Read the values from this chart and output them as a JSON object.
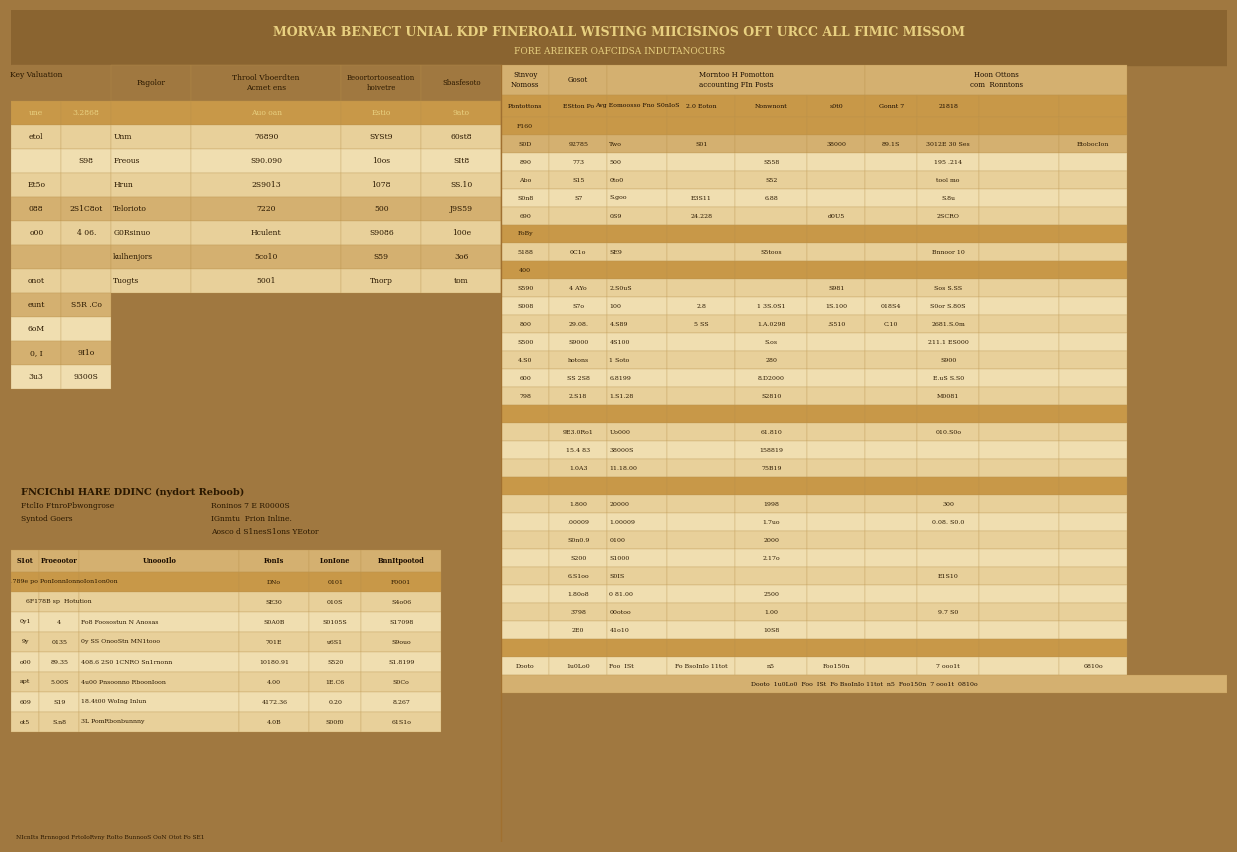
{
  "title": "MORVAR BENECT UNIAL KDP FINEROALL WISTING MIICISINOS OFT URCC ALL FIMIC MISSOM",
  "subtitle": "FORE AREIKER OAFCIDSA INDUTANOCURS",
  "bg": "#a07840",
  "bg_dark": "#8a6430",
  "bg_panel": "#c8a060",
  "cell_light": "#f0deb0",
  "cell_cream": "#e8d09a",
  "cell_tan": "#d4b070",
  "cell_gold": "#c89848",
  "cell_highlight": "#d4a050",
  "title_text": "#e8d080",
  "body_text": "#2a1800",
  "hdr_text": "#1a0c00",
  "left_headers": [
    "Key Valuation",
    "Pagolor",
    "Throol Vboerdten\nAcmet ens",
    "Beoortortooseation\nhoivetre  Sbasfesoto"
  ],
  "left_rows": [
    [
      "une",
      "3.2868",
      "",
      "Auo oan",
      "Estio",
      "9ato"
    ],
    [
      "etol",
      "",
      "Unm",
      "76890",
      "SYSt9",
      "60st8"
    ],
    [
      "",
      "S98",
      "Freous",
      "S90.090",
      "10os",
      "SIt8"
    ],
    [
      "Et5o",
      "",
      "Hrun",
      "2S9013",
      "1078",
      "SS.10"
    ],
    [
      "088",
      "2S1C8ot",
      "Telorioto",
      "7220",
      "500",
      "J9S59"
    ],
    [
      "o00",
      "4 06.",
      "G0Rsinuo",
      "Hculent",
      "S9086",
      "100e"
    ],
    [
      "",
      "",
      "kulhenjors",
      "5co10",
      "S59",
      "3o6"
    ],
    [
      "onot",
      "",
      "Tuogts",
      "5001",
      "Tnorp",
      "tom"
    ]
  ],
  "left_side_labels": [
    [
      "eunt",
      "S5R .Co"
    ],
    [
      "6oM",
      ""
    ],
    [
      "0, I",
      "9I1o"
    ],
    [
      "3u3",
      "9300S"
    ]
  ],
  "bl_title": "FNCIChbl HARE DDINC (nydort Reboob)",
  "bl_sub": [
    [
      "FtclIo FtnroPbwongrose",
      "Roninos 7 E R0000S"
    ],
    [
      "Syntod Goers",
      "IGnmtu  Prion Inline."
    ],
    [
      "",
      "Aosco d S1nesS1ons YEotor"
    ]
  ],
  "bl_col_headers": [
    "S1ot",
    "Proeootor",
    "UnoooIlo",
    "FonIs",
    "LonIone",
    "BnnItpootod"
  ],
  "bl_rows": [
    [
      "",
      "E01789e po PonIonnIonnoIon1on0on",
      "",
      "DNo",
      "0101",
      "F0001"
    ],
    [
      "",
      "6F178B sp  Hotution",
      "",
      "SE30",
      "010S",
      "S4o06"
    ],
    [
      "0y1",
      "4",
      "Fo8 Foosostun N Anosas",
      "S0A0B",
      "S0105S",
      "S17098"
    ],
    [
      "9y",
      "0135",
      "0y SS OnooStn MN1tooo",
      "701E",
      "u6S1",
      "S9ouo"
    ],
    [
      "o00",
      "89.35",
      "408.6 2S0 1CNRO Sn1rnonn",
      "10180.91",
      "S520",
      "S1.8199"
    ],
    [
      "apt",
      "5.00S",
      "4u00 Pnsoonno RboonIoon",
      "4.00",
      "1E.C6",
      "S0Co"
    ],
    [
      "609",
      "S19",
      "18.4t00 WoIng Inlun",
      "4172.36",
      "0.20",
      "8.267"
    ],
    [
      "ot5",
      "S.n8",
      "3L PomRbonbunnny",
      "4.0B",
      "S00f0",
      "61S1o"
    ]
  ],
  "bl_footer": "NIcnIts Rrnnogod FrtoIoRvny RoIto BunnooS OoN Otot Fo SE1",
  "rt_col_hdr1": [
    "Stnvoy\nNomoss",
    "Gosot",
    "Morntoo H Pomotton\naccounting FIn Posts",
    "",
    "",
    "",
    "Hoon Ottons\ncom  Ronntons",
    "",
    "",
    ""
  ],
  "rt_col_hdr2": [
    "Pbntottons",
    "EStton Po",
    "Avg Eomoosso Fno S0nIoS",
    "2.0 Eoton",
    "Nonwnont",
    "s0t0",
    "Gonnt 7",
    "21818",
    "",
    ""
  ],
  "rt_rows": [
    [
      "F160",
      "",
      "",
      "",
      "",
      "",
      "",
      "",
      "",
      ""
    ],
    [
      "S0D",
      "92785",
      "Two",
      "S01",
      "",
      "38000",
      "89.1S",
      "3012E 30 Ses",
      "",
      "EtobocIon"
    ],
    [
      "890",
      "773",
      "500",
      "",
      "S558",
      "",
      "",
      "195 .214",
      "",
      ""
    ],
    [
      "Abo",
      "S15",
      "0to0",
      "",
      "S52",
      "",
      "",
      "tool mo",
      "",
      ""
    ],
    [
      "S0n8",
      "S7",
      "S.goo",
      "E3S11",
      "6.88",
      "",
      "",
      "S.8u",
      "",
      ""
    ],
    [
      "690",
      "",
      "0S9",
      "24.228",
      "",
      "d0U5",
      "",
      "2SCRO",
      "",
      ""
    ],
    [
      "FoBy",
      "",
      "",
      "",
      "",
      "",
      "",
      "",
      "",
      ""
    ],
    [
      "5188",
      "0C1o",
      "SE9",
      "",
      "S5toos",
      "",
      "",
      "Bnnoor 10",
      "",
      ""
    ],
    [
      "400",
      "",
      "",
      "",
      "",
      "",
      "",
      "",
      "",
      ""
    ],
    [
      "S590",
      "4 AYo",
      "2.S0uS",
      "",
      "",
      "S981",
      "",
      "Sos S.SS",
      "",
      ""
    ],
    [
      "S008",
      "S7o",
      "100",
      "2.8",
      "1 3S.0S1",
      "1S.100",
      "018S4",
      "S0or S.80S",
      "",
      ""
    ],
    [
      "800",
      "29.08.",
      "4.S89",
      "5 SS",
      "1.A.0298",
      ".S510",
      "C.10",
      "2681.S.0m",
      "",
      ""
    ],
    [
      "S500",
      "S9000",
      "4S100",
      "",
      "S.os",
      "",
      "",
      "211.1 ES000",
      "",
      ""
    ],
    [
      "4.S0",
      "hotons",
      "1 Soto",
      "",
      "280",
      "",
      "",
      "S900",
      "",
      ""
    ],
    [
      "600",
      "SS 2S8",
      "6.8199",
      "",
      "8.D2000",
      "",
      "",
      "E.uS S.S0",
      "",
      ""
    ],
    [
      "798",
      "2.S18",
      "1.S1.28",
      "",
      "S2810",
      "",
      "",
      "M0081",
      "",
      ""
    ],
    [
      "",
      "",
      "",
      "",
      "",
      "",
      "",
      "",
      "",
      ""
    ],
    [
      "",
      "9E3.0Ro1",
      "Uo000",
      "",
      "61.810",
      "",
      "",
      "010.S0o",
      "",
      ""
    ],
    [
      "",
      "15.4 83",
      "38000S",
      "",
      "158819",
      "",
      "",
      "",
      "",
      ""
    ],
    [
      "",
      "1.0A3",
      "11.18.00",
      "",
      "75B19",
      "",
      "",
      "",
      "",
      ""
    ],
    [
      "",
      "",
      "",
      "",
      "",
      "",
      "",
      "",
      "",
      ""
    ],
    [
      "",
      "1.800",
      "20000",
      "",
      "1998",
      "",
      "",
      "300",
      "",
      ""
    ],
    [
      "",
      ".00009",
      "1.00009",
      "",
      "1.7uo",
      "",
      "",
      "0.08. S0.0",
      "",
      ""
    ],
    [
      "",
      "S0n0.9",
      "0100",
      "",
      "2000",
      "",
      "",
      "",
      "",
      ""
    ],
    [
      "",
      "S200",
      "S1000",
      "",
      "2.17o",
      "",
      "",
      "",
      "",
      ""
    ],
    [
      "",
      "6.S1oo",
      "S0IS",
      "",
      "",
      "",
      "",
      "E1S10",
      "",
      ""
    ],
    [
      "",
      "1.80o8",
      "0 81.00",
      "",
      "2500",
      "",
      "",
      "",
      "",
      ""
    ],
    [
      "",
      "3798",
      "00otoo",
      "",
      "1.00",
      "",
      "",
      "9.7 S0",
      "",
      ""
    ],
    [
      "",
      "2E0",
      "41o10",
      "",
      "10S8",
      "",
      "",
      "",
      "",
      ""
    ],
    [
      "",
      "",
      "",
      "",
      "",
      "",
      "",
      "",
      "",
      ""
    ],
    [
      "Dooto",
      "1u0Lo0",
      "Foo  ISt",
      "Fo BsoInIo 11tot",
      "n5",
      "Foo150n",
      "",
      "7 ooo1t",
      "",
      "0810o"
    ]
  ]
}
